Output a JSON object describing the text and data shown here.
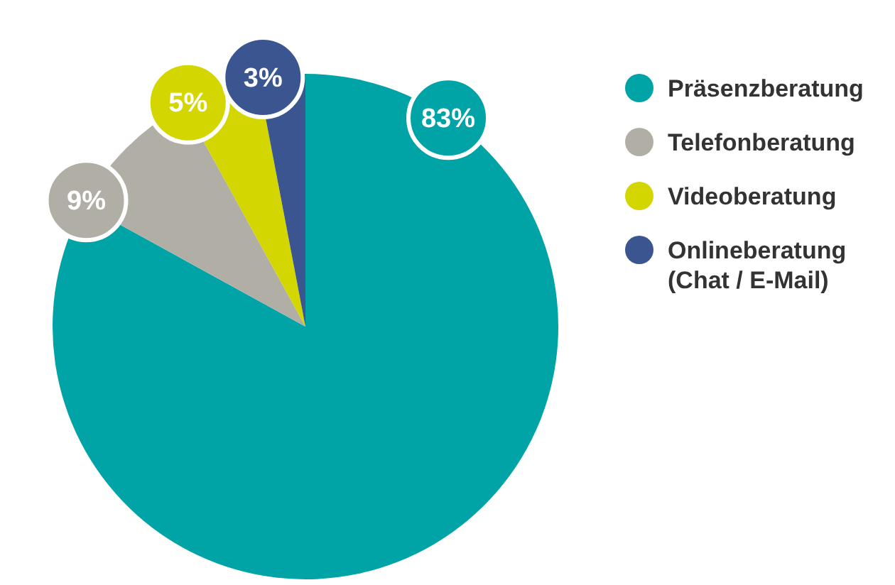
{
  "chart_data": {
    "type": "pie",
    "categories": [
      "Präsenzberatung",
      "Telefonberatung",
      "Videoberatung",
      "Onlineberatung (Chat / E-Mail)"
    ],
    "values": [
      83,
      9,
      5,
      3
    ],
    "colors": [
      "#00a3a6",
      "#b1aea6",
      "#d3d600",
      "#3a5590"
    ],
    "value_labels": [
      "83%",
      "9%",
      "5%",
      "3%"
    ],
    "legend": "right"
  }
}
